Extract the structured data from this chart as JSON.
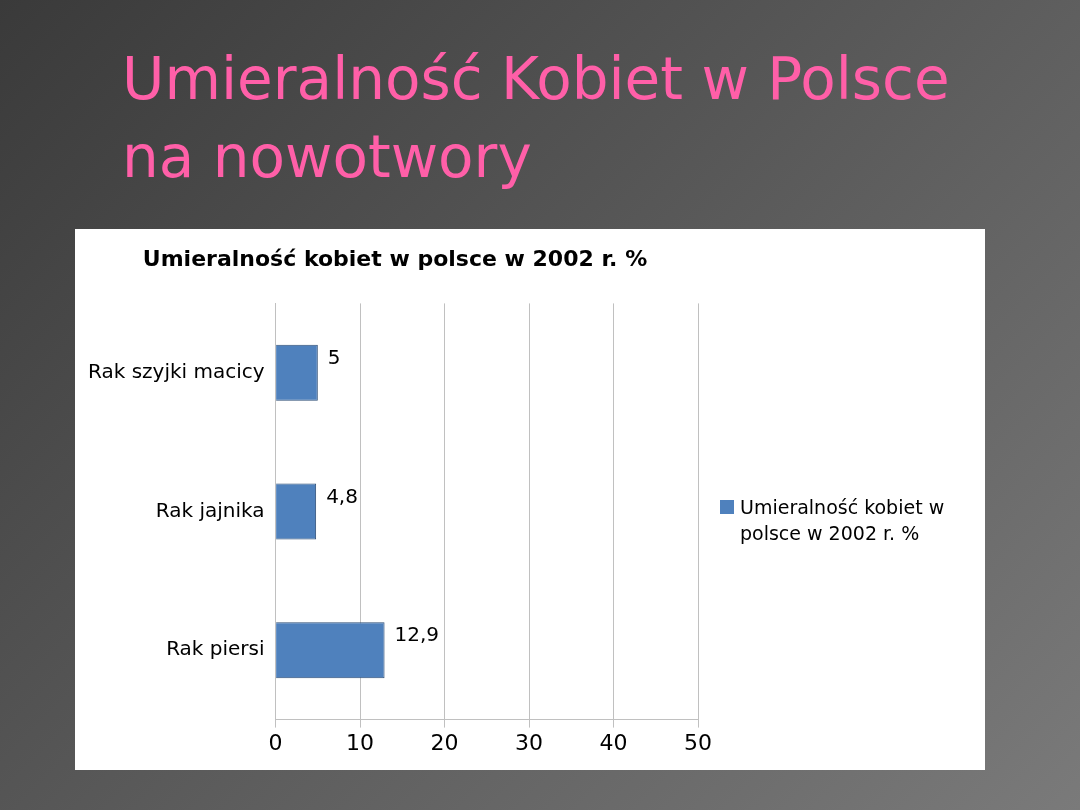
{
  "chart_data": {
    "type": "bar",
    "orientation": "horizontal",
    "title": "Umieralność Kobiet w Polsce na nowotwory",
    "subtitle": "Umieralność kobiet w polsce w 2002 r. %",
    "categories": [
      "Rak szyjki macicy",
      "Rak jajnika",
      "Rak piersi"
    ],
    "series": [
      {
        "name": "Umieralność kobiet w polsce w 2002 r. %",
        "color": "#4f81bd",
        "values": [
          5,
          4.8,
          12.9
        ],
        "value_labels": [
          "5",
          "4,8",
          "12,9"
        ]
      }
    ],
    "xlim": [
      0,
      50
    ],
    "xticks": [
      0,
      10,
      20,
      30,
      40,
      50
    ],
    "grid": "x",
    "legend": "right"
  }
}
